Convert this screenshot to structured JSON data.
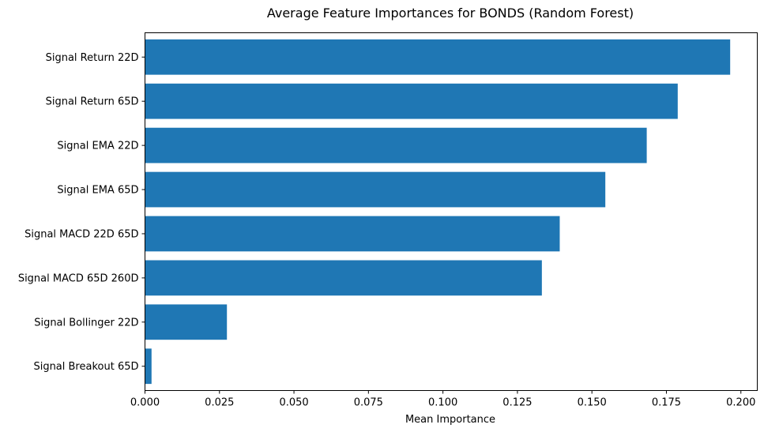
{
  "chart_data": {
    "type": "bar",
    "orientation": "horizontal",
    "title": "Average Feature Importances for BONDS (Random Forest)",
    "xlabel": "Mean Importance",
    "ylabel": "",
    "xlim": [
      0,
      0.2055
    ],
    "xticks": [
      0.0,
      0.025,
      0.05,
      0.075,
      0.1,
      0.125,
      0.15,
      0.175,
      0.2
    ],
    "xtick_labels": [
      "0.000",
      "0.025",
      "0.050",
      "0.075",
      "0.100",
      "0.125",
      "0.150",
      "0.175",
      "0.200"
    ],
    "categories": [
      "Signal Return 22D",
      "Signal Return 65D",
      "Signal EMA 22D",
      "Signal EMA 65D",
      "Signal MACD 22D 65D",
      "Signal MACD 65D 260D",
      "Signal Bollinger 22D",
      "Signal Breakout 65D"
    ],
    "values": [
      0.1964,
      0.1788,
      0.1684,
      0.1545,
      0.1392,
      0.1332,
      0.0275,
      0.0022
    ],
    "bar_color": "#1f77b4",
    "grid": false,
    "legend": false
  }
}
